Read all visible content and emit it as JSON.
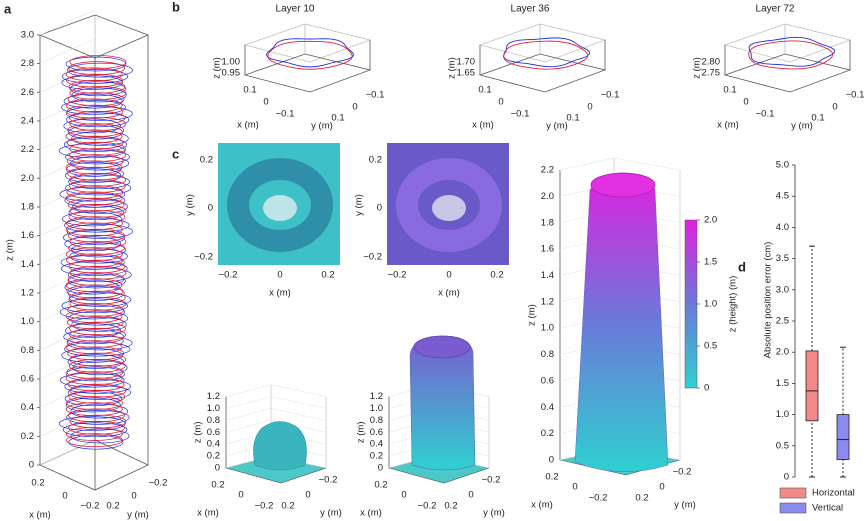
{
  "figure": {
    "panel_letters": [
      "a",
      "b",
      "c",
      "d"
    ],
    "a": {
      "z_label": "z (m)",
      "z_ticks": [
        "0",
        "0.2",
        "0.4",
        "0.6",
        "0.8",
        "1.0",
        "1.2",
        "1.4",
        "1.6",
        "1.8",
        "2.0",
        "2.2",
        "2.4",
        "2.6",
        "2.8",
        "3.0"
      ],
      "x_label": "x (m)",
      "x_ticks": [
        "0.2",
        "0",
        "−0.2"
      ],
      "y_label": "y (m)",
      "y_ticks": [
        "−0.2",
        "0",
        "0.2"
      ]
    },
    "b": {
      "z_label": "z (m)",
      "x_label": "x (m)",
      "y_label": "y (m)",
      "x_ticks": [
        "0.1",
        "0",
        "−0.1"
      ],
      "y_ticks": [
        "−0.1",
        "0",
        "0.1"
      ],
      "plots": [
        {
          "title": "Layer 10",
          "z_ticks": [
            "1.00",
            "0.95"
          ]
        },
        {
          "title": "Layer 36",
          "z_ticks": [
            "1.70",
            "1.65"
          ]
        },
        {
          "title": "Layer 72",
          "z_ticks": [
            "2.80",
            "2.75"
          ]
        }
      ]
    },
    "c": {
      "x_label": "x (m)",
      "y_label": "y (m)",
      "z_label": "z (m)",
      "top_y_ticks": [
        "0.2",
        "0",
        "−0.2"
      ],
      "top_x_ticks": [
        "−0.2",
        "0",
        "0.2"
      ],
      "small_z_ticks": [
        "0",
        "0.2",
        "0.4",
        "0.6",
        "0.8",
        "1.0",
        "1.2"
      ],
      "big_z_ticks": [
        "0",
        "0.2",
        "0.4",
        "0.6",
        "0.8",
        "1.0",
        "1.2",
        "1.4",
        "1.6",
        "1.8",
        "2.0",
        "2.2"
      ],
      "base_x_ticks": [
        "0.2",
        "0",
        "−0.2"
      ],
      "base_y_ticks": [
        "−0.2",
        "0",
        "0.2"
      ],
      "colorbar_label": "z (height) (m)",
      "colorbar_ticks": [
        "2.0",
        "1.5",
        "1.0",
        "0.5",
        "0"
      ]
    }
  },
  "chart_data": {
    "type": "box",
    "y_label": "Absolute position error (cm)",
    "ylim": [
      0,
      5
    ],
    "yticks": [
      0,
      0.5,
      {
        "value": 1,
        "label": "1.0"
      },
      1.5,
      {
        "value": 2,
        "label": "2.0"
      },
      2.5,
      {
        "value": 3,
        "label": "3.0"
      },
      3.5,
      {
        "value": 4,
        "label": "4.0"
      },
      4.5,
      {
        "value": 5,
        "label": "5.0"
      }
    ],
    "series": [
      {
        "name": "Horizontal",
        "color": "#f08a8a",
        "min": 0,
        "q1": 0.9,
        "median": 1.38,
        "q3": 2.02,
        "max": 3.7
      },
      {
        "name": "Vertical",
        "color": "#8a8af0",
        "min": 0,
        "q1": 0.28,
        "median": 0.6,
        "q3": 1.0,
        "max": 2.08
      }
    ]
  }
}
